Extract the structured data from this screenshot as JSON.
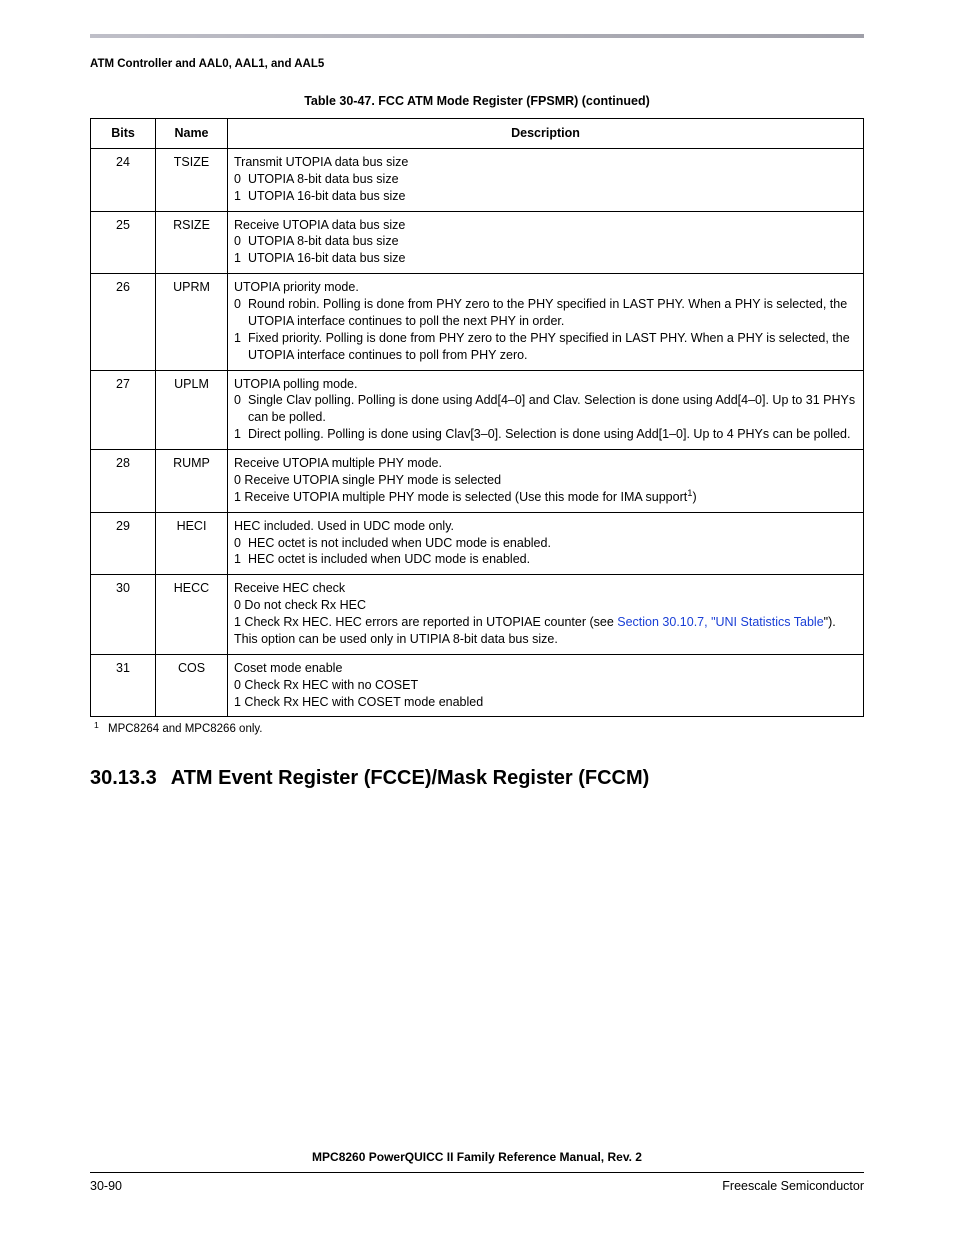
{
  "running_head": "ATM Controller and AAL0, AAL1, and AAL5",
  "table_caption": "Table 30-47. FCC ATM Mode Register (FPSMR)  (continued)",
  "columns": {
    "bits": "Bits",
    "name": "Name",
    "desc": "Description"
  },
  "rows": [
    {
      "bits": "24",
      "name": "TSIZE",
      "title": "Transmit UTOPIA data bus size",
      "opts": [
        {
          "k": "0",
          "v": "UTOPIA 8-bit data bus size"
        },
        {
          "k": "1",
          "v": "UTOPIA 16-bit data bus size"
        }
      ]
    },
    {
      "bits": "25",
      "name": "RSIZE",
      "title": "Receive UTOPIA data bus size",
      "opts": [
        {
          "k": "0",
          "v": "UTOPIA 8-bit data bus size"
        },
        {
          "k": "1",
          "v": "UTOPIA 16-bit data bus size"
        }
      ]
    },
    {
      "bits": "26",
      "name": "UPRM",
      "title": "UTOPIA priority mode.",
      "opts": [
        {
          "k": "0",
          "v": "Round robin. Polling is done from PHY zero to the PHY specified in LAST PHY. When a PHY is selected, the UTOPIA interface continues to poll the next PHY in order."
        },
        {
          "k": "1",
          "v": "Fixed priority. Polling is done from PHY zero to the PHY specified in LAST PHY. When a PHY is selected, the UTOPIA interface continues to poll from PHY zero."
        }
      ]
    },
    {
      "bits": "27",
      "name": "UPLM",
      "title": "UTOPIA polling mode.",
      "opts": [
        {
          "k": "0",
          "v": "Single Clav polling. Polling is done using Add[4–0] and Clav. Selection is done using Add[4–0]. Up to 31 PHYs can be polled."
        },
        {
          "k": "1",
          "v": "Direct polling. Polling is done using Clav[3–0]. Selection is done using Add[1–0]. Up to 4 PHYs can be polled."
        }
      ]
    },
    {
      "bits": "28",
      "name": "RUMP",
      "title": "Receive UTOPIA multiple PHY mode.",
      "raw_lines": [
        "0 Receive UTOPIA single PHY mode is selected",
        {
          "pre": "1 Receive UTOPIA multiple PHY mode is selected (Use this mode for IMA support",
          "sup": "1",
          "post": ")"
        }
      ]
    },
    {
      "bits": "29",
      "name": "HECI",
      "title": "HEC included. Used in UDC mode only.",
      "opts": [
        {
          "k": "0",
          "v": "HEC octet is not included when UDC mode is enabled."
        },
        {
          "k": "1",
          "v": "HEC octet is included when UDC mode is enabled."
        }
      ]
    },
    {
      "bits": "30",
      "name": "HECC",
      "title": "Receive HEC check",
      "raw_lines": [
        "0 Do not check Rx HEC",
        {
          "pre": "1 Check Rx HEC. HEC errors are reported in UTOPIAE counter (see ",
          "link": "Section 30.10.7, \"UNI Statistics Table",
          "post": "\"). This option can be used only in UTIPIA 8-bit data bus size."
        }
      ]
    },
    {
      "bits": "31",
      "name": "COS",
      "title": "Coset mode enable",
      "raw_lines": [
        "0 Check Rx HEC with no COSET",
        "1 Check Rx HEC with COSET mode enabled"
      ]
    }
  ],
  "footnote": {
    "mark": "1",
    "text": "MPC8264 and MPC8266 only."
  },
  "section": {
    "num": "30.13.3",
    "title": "ATM Event Register (FCCE)/Mask Register (FCCM)"
  },
  "footer": {
    "title": "MPC8260 PowerQUICC II Family Reference Manual, Rev. 2",
    "left": "30-90",
    "right": "Freescale Semiconductor"
  },
  "colors": {
    "link": "#1a3fd6"
  }
}
